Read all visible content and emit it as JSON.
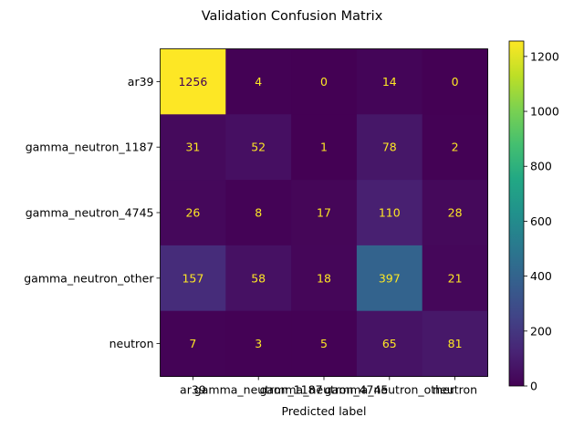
{
  "chart_data": {
    "type": "heatmap",
    "title": "Validation Confusion Matrix",
    "xlabel": "Predicted label",
    "ylabel": "",
    "row_labels": [
      "ar39",
      "gamma_neutron_1187",
      "gamma_neutron_4745",
      "gamma_neutron_other",
      "neutron"
    ],
    "col_labels": [
      "ar39",
      "gamma_neutron_1187",
      "gamma_neutron_4745",
      "gamma_neutron_other",
      "neutron"
    ],
    "values": [
      [
        1256,
        4,
        0,
        14,
        0
      ],
      [
        31,
        52,
        1,
        78,
        2
      ],
      [
        26,
        8,
        17,
        110,
        28
      ],
      [
        157,
        58,
        18,
        397,
        21
      ],
      [
        7,
        3,
        5,
        65,
        81
      ]
    ],
    "colormap": "viridis",
    "colorbar": {
      "range": [
        0,
        1256
      ],
      "ticks": [
        0,
        200,
        400,
        600,
        800,
        1000,
        1200
      ]
    },
    "grid": false
  }
}
